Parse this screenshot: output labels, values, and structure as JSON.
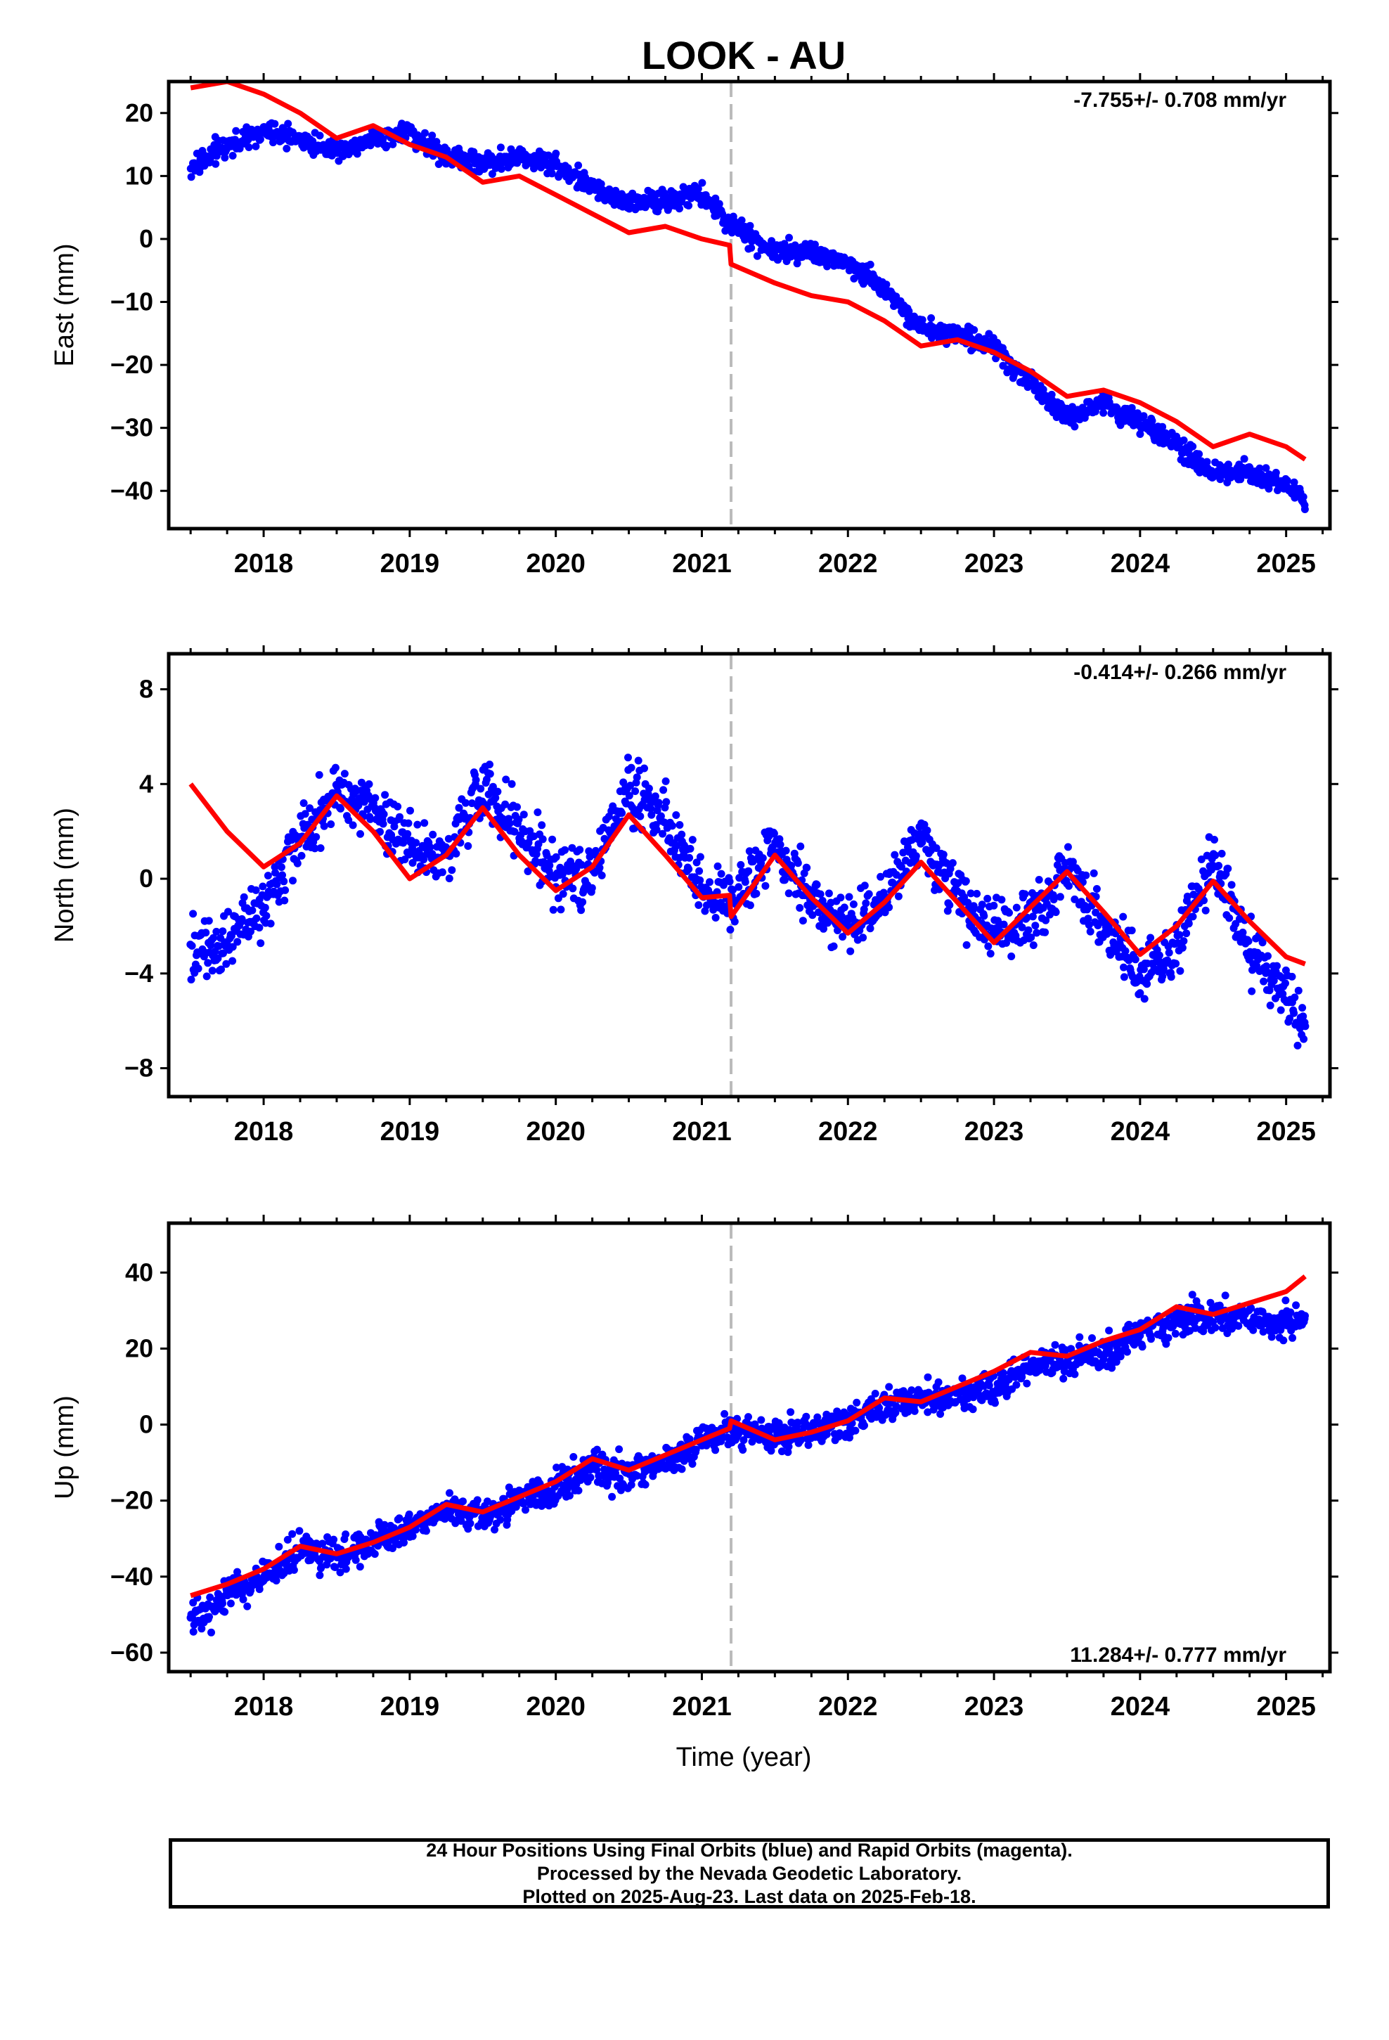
{
  "title": "LOOK - AU",
  "xlabel": "Time (year)",
  "colors": {
    "points": "#0000ff",
    "model": "#ff0000",
    "break": "#bbbbbb",
    "axes": "#000000"
  },
  "x_ticks": [
    "2018",
    "2019",
    "2020",
    "2021",
    "2022",
    "2023",
    "2024",
    "2025"
  ],
  "chart_data": [
    {
      "type": "scatter",
      "panel": "east",
      "ylabel": "East (mm)",
      "rate_label": "-7.755+/- 0.708 mm/yr",
      "rate_position": "top-right",
      "xlim": [
        2017.35,
        2025.3
      ],
      "ylim": [
        -46,
        25
      ],
      "y_ticks": [
        20,
        10,
        0,
        -10,
        -20,
        -30,
        -40
      ],
      "break_x": 2021.2,
      "series": [
        {
          "role": "daily-positions",
          "x": [
            2017.5,
            2017.75,
            2018.0,
            2018.25,
            2018.5,
            2018.75,
            2019.0,
            2019.25,
            2019.5,
            2019.75,
            2020.0,
            2020.25,
            2020.5,
            2020.75,
            2021.0,
            2021.2,
            2021.5,
            2021.75,
            2022.0,
            2022.25,
            2022.5,
            2022.75,
            2023.0,
            2023.25,
            2023.5,
            2023.75,
            2024.0,
            2024.25,
            2024.5,
            2024.75,
            2025.0,
            2025.13
          ],
          "y": [
            11,
            15,
            17,
            16,
            14,
            16,
            17,
            13,
            12,
            13,
            12,
            8,
            6,
            6,
            7,
            2,
            -2,
            -2,
            -4,
            -8,
            -14,
            -15,
            -17,
            -23,
            -28,
            -26,
            -29,
            -33,
            -37,
            -37,
            -39,
            -42
          ]
        },
        {
          "role": "model-fit",
          "x": [
            2017.5,
            2017.75,
            2018.0,
            2018.25,
            2018.5,
            2018.75,
            2019.0,
            2019.25,
            2019.5,
            2019.75,
            2020.0,
            2020.25,
            2020.5,
            2020.75,
            2021.0,
            2021.19,
            2021.2,
            2021.5,
            2021.75,
            2022.0,
            2022.25,
            2022.5,
            2022.75,
            2023.0,
            2023.25,
            2023.5,
            2023.75,
            2024.0,
            2024.25,
            2024.5,
            2024.75,
            2025.0,
            2025.13
          ],
          "y": [
            24,
            25,
            23,
            20,
            16,
            18,
            15,
            13,
            9,
            10,
            7,
            4,
            1,
            2,
            0,
            -1,
            -4,
            -7,
            -9,
            -10,
            -13,
            -17,
            -16,
            -18,
            -21,
            -25,
            -24,
            -26,
            -29,
            -33,
            -31,
            -33,
            -35
          ]
        }
      ]
    },
    {
      "type": "scatter",
      "panel": "north",
      "ylabel": "North (mm)",
      "rate_label": "-0.414+/- 0.266 mm/yr",
      "rate_position": "top-right",
      "xlim": [
        2017.35,
        2025.3
      ],
      "ylim": [
        -9.2,
        9.5
      ],
      "y_ticks": [
        8,
        4,
        0,
        -4,
        -8
      ],
      "break_x": 2021.2,
      "series": [
        {
          "role": "daily-positions",
          "x": [
            2017.5,
            2017.75,
            2018.0,
            2018.25,
            2018.5,
            2018.75,
            2019.0,
            2019.25,
            2019.5,
            2019.75,
            2020.0,
            2020.25,
            2020.5,
            2020.75,
            2021.0,
            2021.2,
            2021.5,
            2021.75,
            2022.0,
            2022.25,
            2022.5,
            2022.75,
            2023.0,
            2023.25,
            2023.5,
            2023.75,
            2024.0,
            2024.25,
            2024.5,
            2024.75,
            2025.0,
            2025.13
          ],
          "y": [
            -3,
            -2.5,
            -1,
            1.5,
            3.5,
            3,
            1.5,
            1,
            4,
            2,
            0,
            0,
            4,
            2.5,
            -0.5,
            -1,
            1.5,
            -1,
            -2,
            -1,
            2,
            -1,
            -2,
            -2,
            0.5,
            -2,
            -4,
            -3,
            1,
            -3,
            -5,
            -6.5
          ]
        },
        {
          "role": "model-fit",
          "x": [
            2017.5,
            2017.75,
            2018.0,
            2018.25,
            2018.5,
            2018.75,
            2019.0,
            2019.25,
            2019.5,
            2019.75,
            2020.0,
            2020.25,
            2020.5,
            2020.75,
            2021.0,
            2021.19,
            2021.2,
            2021.5,
            2021.75,
            2022.0,
            2022.25,
            2022.5,
            2022.75,
            2023.0,
            2023.25,
            2023.5,
            2023.75,
            2024.0,
            2024.25,
            2024.5,
            2024.75,
            2025.0,
            2025.13
          ],
          "y": [
            4,
            2,
            0.5,
            1.5,
            3.5,
            2,
            0,
            1,
            3,
            1,
            -0.5,
            0.5,
            2.7,
            1,
            -0.8,
            -0.7,
            -1.6,
            1,
            -0.8,
            -2.3,
            -1,
            0.7,
            -1,
            -2.7,
            -1.2,
            0.3,
            -1.4,
            -3.2,
            -2,
            -0.1,
            -1.8,
            -3.3,
            -3.6
          ]
        }
      ]
    },
    {
      "type": "scatter",
      "panel": "up",
      "ylabel": "Up (mm)",
      "rate_label": "11.284+/- 0.777 mm/yr",
      "rate_position": "bottom-right",
      "xlim": [
        2017.35,
        2025.3
      ],
      "ylim": [
        -65,
        53
      ],
      "y_ticks": [
        40,
        20,
        0,
        -20,
        -40,
        -60
      ],
      "break_x": 2021.2,
      "series": [
        {
          "role": "daily-positions",
          "x": [
            2017.5,
            2017.75,
            2018.0,
            2018.25,
            2018.5,
            2018.75,
            2019.0,
            2019.25,
            2019.5,
            2019.75,
            2020.0,
            2020.25,
            2020.5,
            2020.75,
            2021.0,
            2021.2,
            2021.5,
            2021.75,
            2022.0,
            2022.25,
            2022.5,
            2022.75,
            2023.0,
            2023.25,
            2023.5,
            2023.75,
            2024.0,
            2024.25,
            2024.5,
            2024.75,
            2025.0,
            2025.13
          ],
          "y": [
            -52,
            -45,
            -40,
            -33,
            -35,
            -31,
            -27,
            -22,
            -24,
            -20,
            -17,
            -11,
            -13,
            -10,
            -5,
            -1,
            -3,
            -2,
            1,
            5,
            7,
            8,
            10,
            15,
            17,
            18,
            24,
            28,
            28,
            28,
            27,
            28
          ]
        },
        {
          "role": "model-fit",
          "x": [
            2017.5,
            2017.75,
            2018.0,
            2018.25,
            2018.5,
            2018.75,
            2019.0,
            2019.25,
            2019.5,
            2019.75,
            2020.0,
            2020.25,
            2020.5,
            2020.75,
            2021.0,
            2021.19,
            2021.2,
            2021.5,
            2021.75,
            2022.0,
            2022.25,
            2022.5,
            2022.75,
            2023.0,
            2023.25,
            2023.5,
            2023.75,
            2024.0,
            2024.25,
            2024.5,
            2024.75,
            2025.0,
            2025.13
          ],
          "y": [
            -45,
            -42,
            -38,
            -32,
            -34,
            -31,
            -27,
            -21,
            -23,
            -19,
            -15,
            -9,
            -12,
            -8,
            -4,
            -1,
            1,
            -4,
            -2,
            1,
            7,
            6,
            10,
            14,
            19,
            18,
            22,
            25,
            31,
            29,
            32,
            35,
            39
          ]
        }
      ]
    }
  ],
  "footer": {
    "line1": "24 Hour Positions Using Final Orbits (blue) and Rapid Orbits (magenta).",
    "line2": "Processed by the Nevada Geodetic Laboratory.",
    "line3": "Plotted on 2025-Aug-23. Last data on 2025-Feb-18."
  }
}
